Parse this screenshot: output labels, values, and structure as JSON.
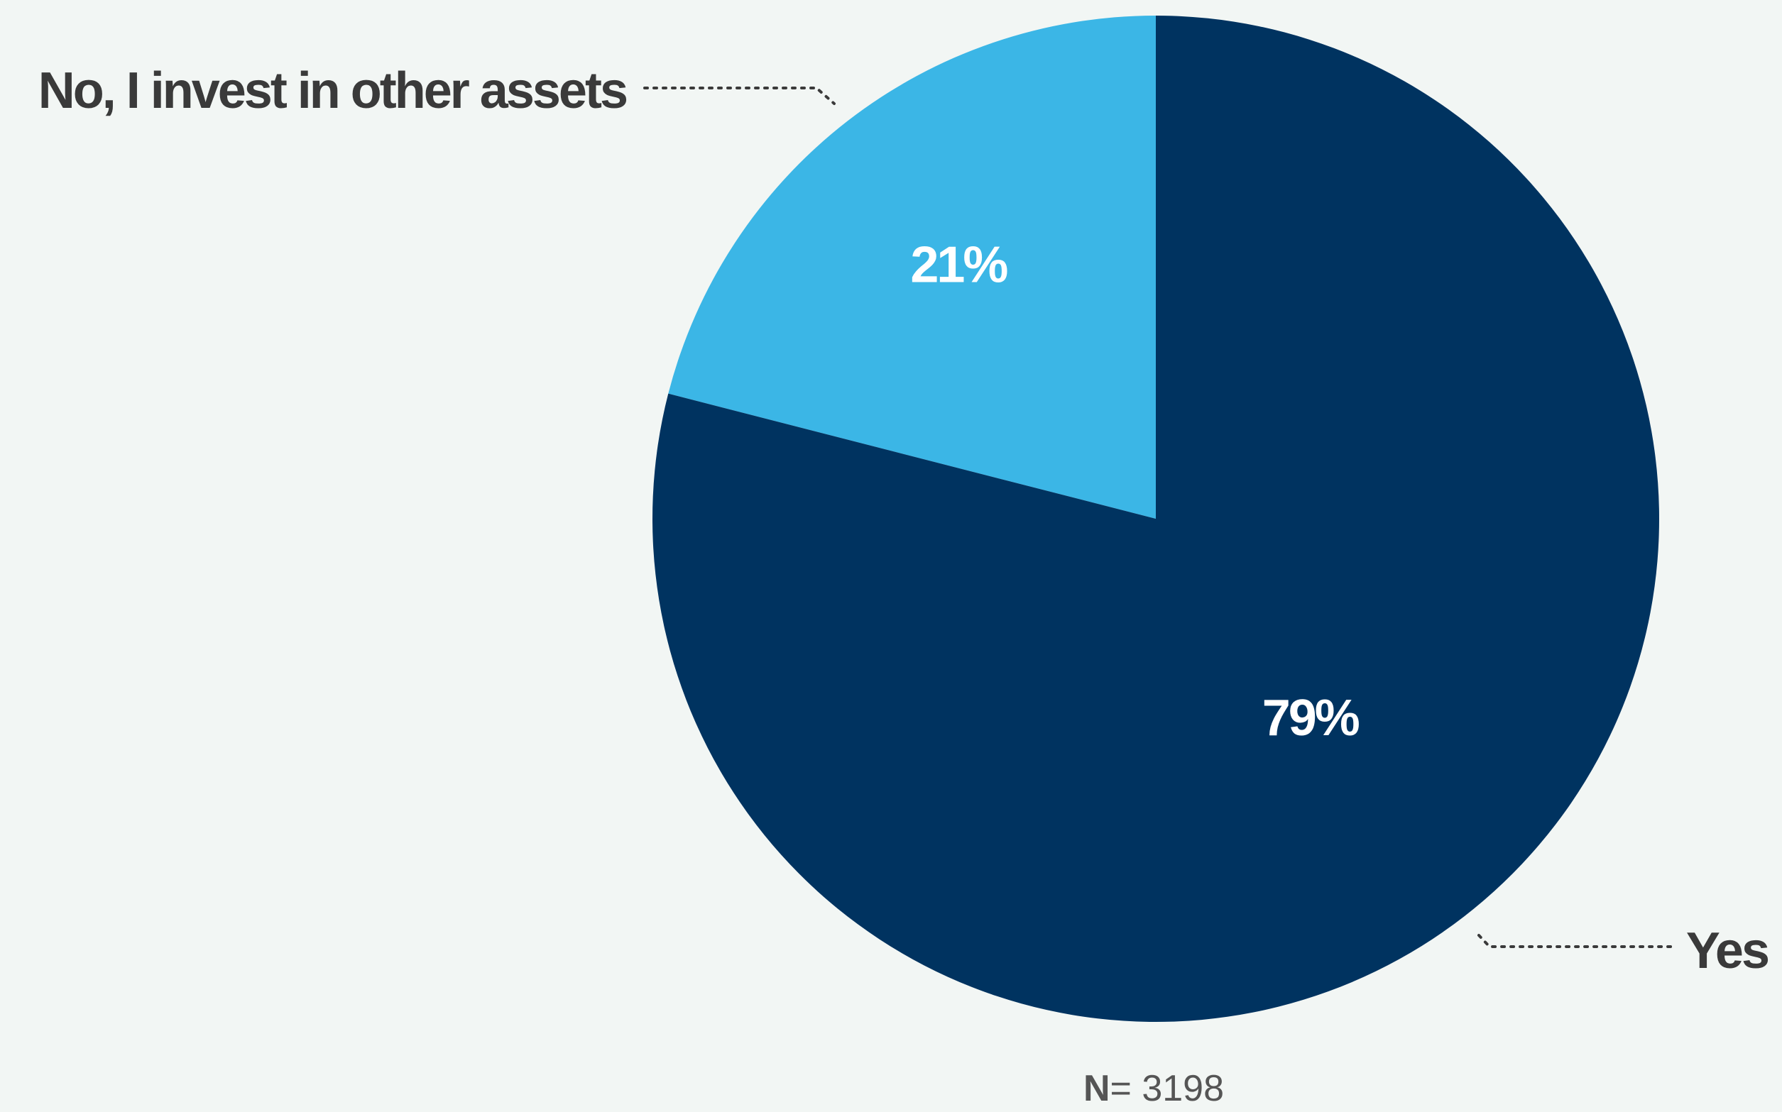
{
  "chart_data": {
    "type": "pie",
    "slices": [
      {
        "label": "No, I invest in other assets",
        "value": 21,
        "value_label": "21%",
        "color": "#3bb6e6"
      },
      {
        "label": "Yes",
        "value": 79,
        "value_label": "79%",
        "color": "#003360"
      }
    ],
    "start_angle": "12 o'clock",
    "direction": "counterclockwise for first slice",
    "footnote": {
      "letter": "N",
      "text": "= 3198"
    },
    "background": "#f2f6f4"
  }
}
